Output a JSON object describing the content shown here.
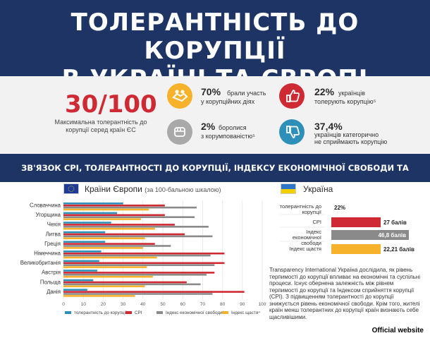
{
  "header": {
    "title_line1": "ТОЛЕРАНТНІСТЬ ДО КОРУПЦІЇ",
    "title_line2": "В УКРАЇНІ ТА ЄВРОПІ"
  },
  "stats": {
    "main_value": "30/100",
    "main_caption": "Максимальна толерантність до корупції серед країн ЄС",
    "items": [
      {
        "value": "70%",
        "text_line1": "брали участь",
        "text_line2": "у корупційних діях",
        "icon": "handshake-icon",
        "color": "#f5b22a"
      },
      {
        "value": "22%",
        "text_line1": "українців",
        "text_line2": "толерують корупцію⁵",
        "icon": "thumbs-up-icon",
        "color": "#cf2a34"
      },
      {
        "value": "2%",
        "text_line1": "боролися",
        "text_line2": "з корумпованістю⁵",
        "icon": "fist-icon",
        "color": "#a9a9a9"
      },
      {
        "value": "37,4%",
        "text_line1": "українців категорично",
        "text_line2": "не сприймають корупцію",
        "icon": "thumbs-down-icon",
        "color": "#2e90b8"
      }
    ]
  },
  "section_title": "ЗВ'ЯЗОК CPI, ТОЛЕРАНТНОСТІ ДО КОРУПЦІЇ, ІНДЕКСУ ЕКОНОМІЧНОЇ СВОБОДИ ТА ЦЕНДЕКСУ ЩАСТЯ",
  "europe": {
    "title": "Країни Європи",
    "subtitle": "(за 100-бальною шкалою)"
  },
  "ukraine": {
    "title": "Україна",
    "rows": [
      {
        "label": "толерантність до корупції",
        "value": 22,
        "display": "22%"
      },
      {
        "label": "CPI",
        "value": 27,
        "display": "27 балів"
      },
      {
        "label": "Індекс економічної свободи",
        "value": 46.8,
        "display": "46,8 балів"
      },
      {
        "label": "Індекс щастя",
        "value": 22.21,
        "display": "22,21 балів"
      }
    ],
    "paragraph": "Transparency International Україна дослідила, як рівень терпимості до корупції впливає на економічні та суспільні процеси. Існує обернена залежність між рівнем терпимості до корупції та Індексом сприйняття корупції (CPI). З підвищенням толерантності до корупції знижується рівень економічної свободи. Крім того, жителі країн менш толерантних до корупції країн визнають себе щасливішими."
  },
  "colors": {
    "tolerance": "#2e90b8",
    "cpi": "#cf2a34",
    "econ": "#8a8a8a",
    "happy": "#f5b22a",
    "navy": "#1e3464"
  },
  "chart_data": {
    "type": "bar",
    "orientation": "horizontal",
    "categories": [
      "Словаччина",
      "Угорщина",
      "Чехія",
      "Литва",
      "Греція",
      "Німеччина",
      "Великобританія",
      "Австрія",
      "Польща",
      "Данія"
    ],
    "series": [
      {
        "name": "толерантність до корупції⁵",
        "values": [
          30,
          27,
          24,
          21,
          21,
          19,
          18,
          17,
          15,
          12
        ]
      },
      {
        "name": "CPI",
        "values": [
          51,
          51,
          56,
          61,
          46,
          81,
          81,
          76,
          62,
          91
        ]
      },
      {
        "name": "Індекс економічної свободи³",
        "values": [
          67,
          66,
          73,
          75,
          54,
          74,
          76,
          72,
          69,
          75
        ]
      },
      {
        "name": "Індекс щастя⁴",
        "values": [
          43,
          39,
          46,
          41,
          40,
          47,
          42,
          45,
          41,
          36
        ]
      }
    ],
    "xlim": [
      0,
      100
    ],
    "xticks": [
      0,
      10,
      20,
      30,
      40,
      50,
      60,
      70,
      80,
      90,
      100
    ],
    "grid": true,
    "legend": "bottom"
  },
  "footer": "Official website"
}
